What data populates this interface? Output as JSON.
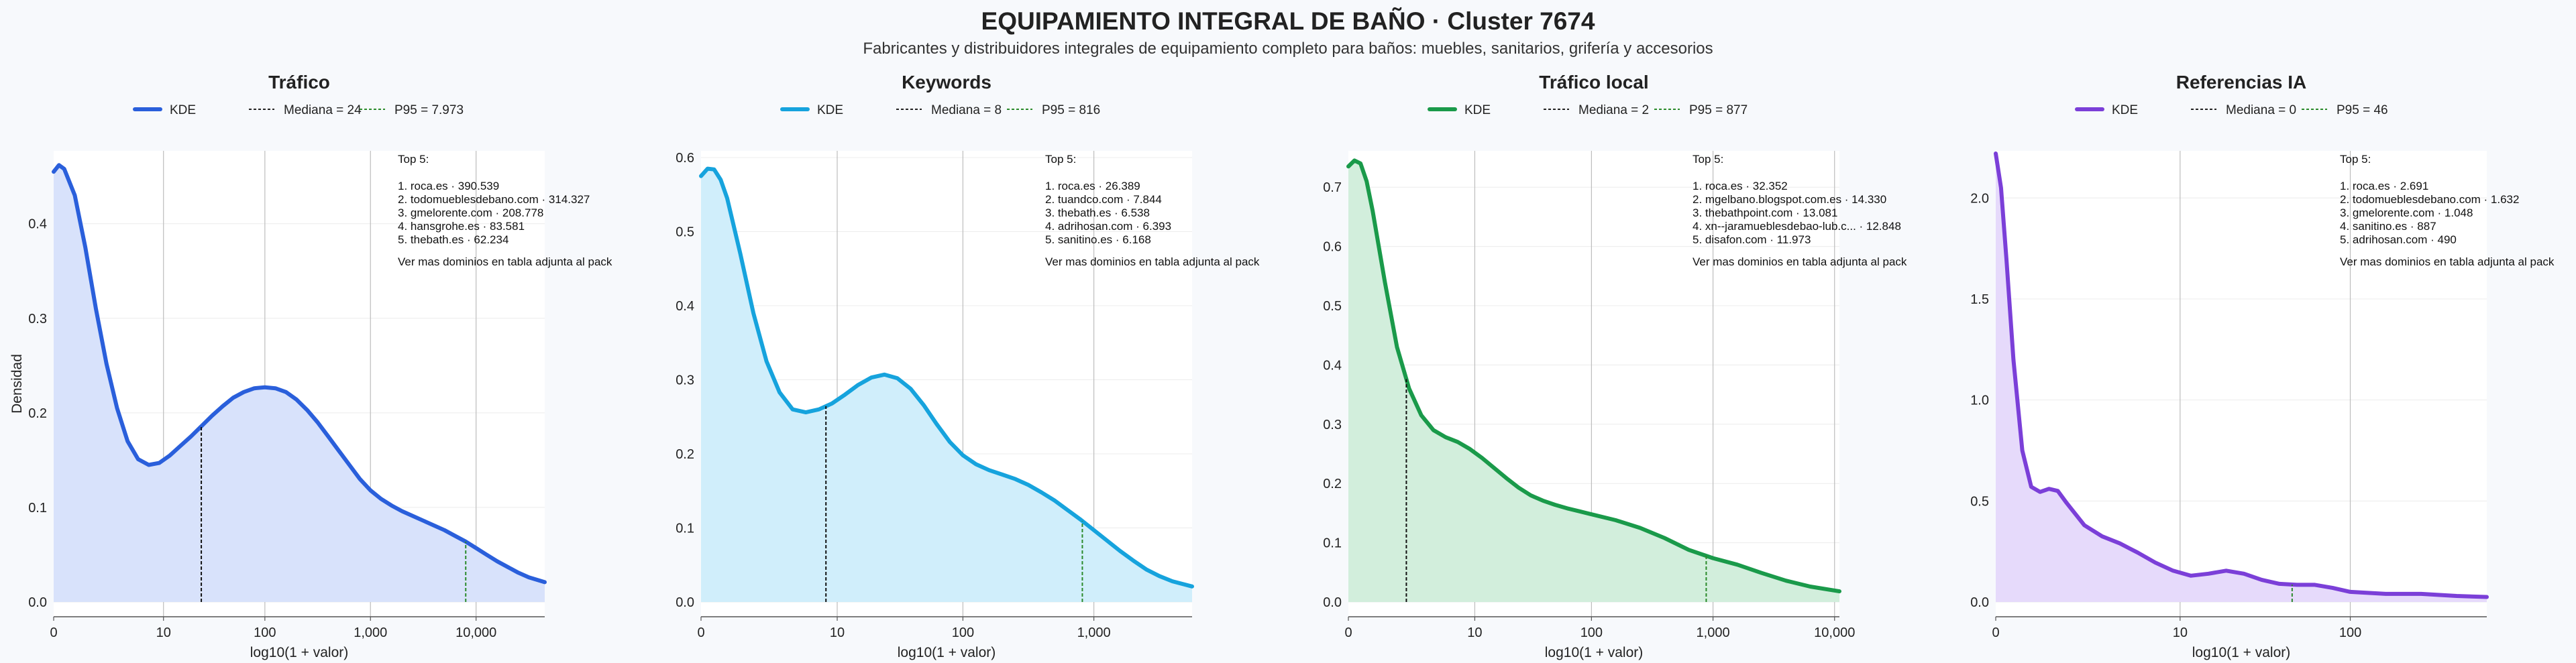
{
  "header": {
    "title": "EQUIPAMIENTO INTEGRAL DE BAÑO · Cluster 7674",
    "subtitle": "Fabricantes y distribuidores integrales de equipamiento completo para baños: muebles, sanitarios, grifería y accesorios"
  },
  "chart_data": [
    {
      "type": "area",
      "title": "Tráfico",
      "xlabel": "log10(1 + valor)",
      "ylabel": "Densidad",
      "color": "#2a5fdb",
      "fill": "#d8e2fb",
      "xlim": [
        0,
        4.65
      ],
      "ylim": [
        0,
        0.47
      ],
      "x_ticks": [
        {
          "v": 0,
          "label": "0"
        },
        {
          "v": 1.04,
          "label": "10"
        },
        {
          "v": 2.0,
          "label": "100"
        },
        {
          "v": 3.0,
          "label": "1,000"
        },
        {
          "v": 4.0,
          "label": "10,000"
        }
      ],
      "y_ticks": [
        {
          "v": 0,
          "label": "0.0"
        },
        {
          "v": 0.1,
          "label": "0.1"
        },
        {
          "v": 0.2,
          "label": "0.2"
        },
        {
          "v": 0.3,
          "label": "0.3"
        },
        {
          "v": 0.4,
          "label": "0.4"
        }
      ],
      "legend": [
        {
          "label": "KDE",
          "style": "kde"
        },
        {
          "label": "Mediana = 24",
          "style": "median"
        },
        {
          "label": "P95 = 7.973",
          "style": "p95"
        }
      ],
      "median": 1.398,
      "p95": 3.902,
      "top5": {
        "title": "Top 5:",
        "items": [
          "1. roca.es · 390.539",
          "2. todomueblesdebano.com · 314.327",
          "3. gmelorente.com · 208.778",
          "4. hansgrohe.es · 83.581",
          "5. thebath.es · 62.234"
        ],
        "footer": "Ver mas dominios en tabla adjunta al pack"
      },
      "x": [
        0,
        0.05,
        0.1,
        0.2,
        0.3,
        0.4,
        0.5,
        0.6,
        0.7,
        0.8,
        0.9,
        1.0,
        1.1,
        1.2,
        1.3,
        1.4,
        1.5,
        1.6,
        1.7,
        1.8,
        1.9,
        2.0,
        2.1,
        2.2,
        2.3,
        2.4,
        2.5,
        2.6,
        2.7,
        2.8,
        2.9,
        3.0,
        3.1,
        3.2,
        3.3,
        3.4,
        3.5,
        3.6,
        3.7,
        3.8,
        3.9,
        4.0,
        4.1,
        4.2,
        4.3,
        4.4,
        4.5,
        4.65
      ],
      "y": [
        0.455,
        0.462,
        0.458,
        0.43,
        0.375,
        0.31,
        0.252,
        0.205,
        0.17,
        0.151,
        0.145,
        0.147,
        0.155,
        0.165,
        0.175,
        0.186,
        0.197,
        0.207,
        0.216,
        0.222,
        0.226,
        0.227,
        0.226,
        0.222,
        0.214,
        0.203,
        0.19,
        0.175,
        0.16,
        0.145,
        0.13,
        0.118,
        0.109,
        0.102,
        0.096,
        0.091,
        0.086,
        0.081,
        0.076,
        0.07,
        0.064,
        0.057,
        0.05,
        0.043,
        0.037,
        0.031,
        0.026,
        0.021
      ]
    },
    {
      "type": "area",
      "title": "Keywords",
      "xlabel": "log10(1 + valor)",
      "ylabel": "",
      "color": "#16a3dd",
      "fill": "#d0eefb",
      "xlim": [
        0,
        3.75
      ],
      "ylim": [
        0,
        0.6
      ],
      "x_ticks": [
        {
          "v": 0,
          "label": "0"
        },
        {
          "v": 1.04,
          "label": "10"
        },
        {
          "v": 2.0,
          "label": "100"
        },
        {
          "v": 3.0,
          "label": "1,000"
        }
      ],
      "y_ticks": [
        {
          "v": 0,
          "label": "0.0"
        },
        {
          "v": 0.1,
          "label": "0.1"
        },
        {
          "v": 0.2,
          "label": "0.2"
        },
        {
          "v": 0.3,
          "label": "0.3"
        },
        {
          "v": 0.4,
          "label": "0.4"
        },
        {
          "v": 0.5,
          "label": "0.5"
        },
        {
          "v": 0.6,
          "label": "0.6"
        }
      ],
      "legend": [
        {
          "label": "KDE",
          "style": "kde"
        },
        {
          "label": "Mediana = 8",
          "style": "median"
        },
        {
          "label": "P95 = 816",
          "style": "p95"
        }
      ],
      "median": 0.954,
      "p95": 2.912,
      "top5": {
        "title": "Top 5:",
        "items": [
          "1. roca.es · 26.389",
          "2. tuandco.com · 7.844",
          "3. thebath.es · 6.538",
          "4. adrihosan.com · 6.393",
          "5. sanitino.es · 6.168"
        ],
        "footer": "Ver mas dominios en tabla adjunta al pack"
      },
      "x": [
        0,
        0.05,
        0.1,
        0.15,
        0.2,
        0.3,
        0.4,
        0.5,
        0.6,
        0.7,
        0.8,
        0.9,
        1.0,
        1.1,
        1.2,
        1.3,
        1.4,
        1.5,
        1.6,
        1.7,
        1.8,
        1.9,
        2.0,
        2.1,
        2.2,
        2.3,
        2.4,
        2.5,
        2.6,
        2.7,
        2.8,
        2.9,
        3.0,
        3.1,
        3.2,
        3.3,
        3.4,
        3.5,
        3.6,
        3.75
      ],
      "y": [
        0.575,
        0.585,
        0.584,
        0.57,
        0.545,
        0.47,
        0.39,
        0.325,
        0.283,
        0.26,
        0.256,
        0.26,
        0.268,
        0.28,
        0.293,
        0.303,
        0.307,
        0.302,
        0.288,
        0.266,
        0.24,
        0.216,
        0.198,
        0.186,
        0.178,
        0.172,
        0.166,
        0.158,
        0.148,
        0.137,
        0.124,
        0.111,
        0.097,
        0.083,
        0.069,
        0.056,
        0.044,
        0.035,
        0.028,
        0.021
      ]
    },
    {
      "type": "area",
      "title": "Tráfico local",
      "xlabel": "log10(1 + valor)",
      "ylabel": "",
      "color": "#1a9a4a",
      "fill": "#d2eedc",
      "xlim": [
        0,
        4.04
      ],
      "ylim": [
        0,
        0.75
      ],
      "x_ticks": [
        {
          "v": 0,
          "label": "0"
        },
        {
          "v": 1.04,
          "label": "10"
        },
        {
          "v": 2.0,
          "label": "100"
        },
        {
          "v": 3.0,
          "label": "1,000"
        },
        {
          "v": 4.0,
          "label": "10,000"
        }
      ],
      "y_ticks": [
        {
          "v": 0,
          "label": "0.0"
        },
        {
          "v": 0.1,
          "label": "0.1"
        },
        {
          "v": 0.2,
          "label": "0.2"
        },
        {
          "v": 0.3,
          "label": "0.3"
        },
        {
          "v": 0.4,
          "label": "0.4"
        },
        {
          "v": 0.5,
          "label": "0.5"
        },
        {
          "v": 0.6,
          "label": "0.6"
        },
        {
          "v": 0.7,
          "label": "0.7"
        }
      ],
      "legend": [
        {
          "label": "KDE",
          "style": "kde"
        },
        {
          "label": "Mediana = 2",
          "style": "median"
        },
        {
          "label": "P95 = 877",
          "style": "p95"
        }
      ],
      "median": 0.477,
      "p95": 2.944,
      "top5": {
        "title": "Top 5:",
        "items": [
          "1. roca.es · 32.352",
          "2. mgelbano.blogspot.com.es · 14.330",
          "3. thebathpoint.com · 13.081",
          "4. xn--jaramueblesdebao-lub.c... · 12.848",
          "5. disafon.com · 11.973"
        ],
        "footer": "Ver mas dominios en tabla adjunta al pack"
      },
      "x": [
        0,
        0.05,
        0.1,
        0.15,
        0.2,
        0.3,
        0.4,
        0.5,
        0.6,
        0.7,
        0.8,
        0.9,
        1.0,
        1.1,
        1.2,
        1.3,
        1.4,
        1.5,
        1.6,
        1.7,
        1.8,
        1.9,
        2.0,
        2.2,
        2.4,
        2.6,
        2.8,
        3.0,
        3.2,
        3.4,
        3.6,
        3.8,
        4.04
      ],
      "y": [
        0.735,
        0.745,
        0.74,
        0.71,
        0.66,
        0.54,
        0.43,
        0.36,
        0.315,
        0.29,
        0.278,
        0.27,
        0.258,
        0.243,
        0.226,
        0.209,
        0.193,
        0.18,
        0.171,
        0.164,
        0.158,
        0.153,
        0.148,
        0.138,
        0.125,
        0.108,
        0.088,
        0.074,
        0.063,
        0.049,
        0.036,
        0.026,
        0.018
      ]
    },
    {
      "type": "area",
      "title": "Referencias IA",
      "xlabel": "log10(1 + valor)",
      "ylabel": "",
      "color": "#7b3fd8",
      "fill": "#e6dafb",
      "xlim": [
        0,
        2.77
      ],
      "ylim": [
        0,
        2.2
      ],
      "x_ticks": [
        {
          "v": 0,
          "label": "0"
        },
        {
          "v": 1.04,
          "label": "10"
        },
        {
          "v": 2.0,
          "label": "100"
        }
      ],
      "y_ticks": [
        {
          "v": 0,
          "label": "0.0"
        },
        {
          "v": 0.5,
          "label": "0.5"
        },
        {
          "v": 1.0,
          "label": "1.0"
        },
        {
          "v": 1.5,
          "label": "1.5"
        },
        {
          "v": 2.0,
          "label": "2.0"
        }
      ],
      "legend": [
        {
          "label": "KDE",
          "style": "kde"
        },
        {
          "label": "Mediana = 0",
          "style": "median"
        },
        {
          "label": "P95 = 46",
          "style": "p95"
        }
      ],
      "median": 0,
      "p95": 1.672,
      "top5": {
        "title": "Top 5:",
        "items": [
          "1. roca.es · 2.691",
          "2. todomueblesdebano.com · 1.632",
          "3. gmelorente.com · 1.048",
          "4. sanitino.es · 887",
          "5. adrihosan.com · 490"
        ],
        "footer": "Ver mas dominios en tabla adjunta al pack"
      },
      "x": [
        0,
        0.03,
        0.06,
        0.1,
        0.15,
        0.2,
        0.25,
        0.3,
        0.35,
        0.4,
        0.5,
        0.6,
        0.7,
        0.8,
        0.9,
        1.0,
        1.1,
        1.2,
        1.3,
        1.4,
        1.5,
        1.6,
        1.7,
        1.8,
        1.9,
        2.0,
        2.2,
        2.4,
        2.6,
        2.77
      ],
      "y": [
        2.22,
        2.05,
        1.7,
        1.2,
        0.75,
        0.57,
        0.545,
        0.56,
        0.55,
        0.49,
        0.38,
        0.325,
        0.29,
        0.245,
        0.195,
        0.155,
        0.13,
        0.14,
        0.155,
        0.14,
        0.11,
        0.09,
        0.085,
        0.085,
        0.07,
        0.05,
        0.04,
        0.04,
        0.03,
        0.025
      ]
    }
  ]
}
